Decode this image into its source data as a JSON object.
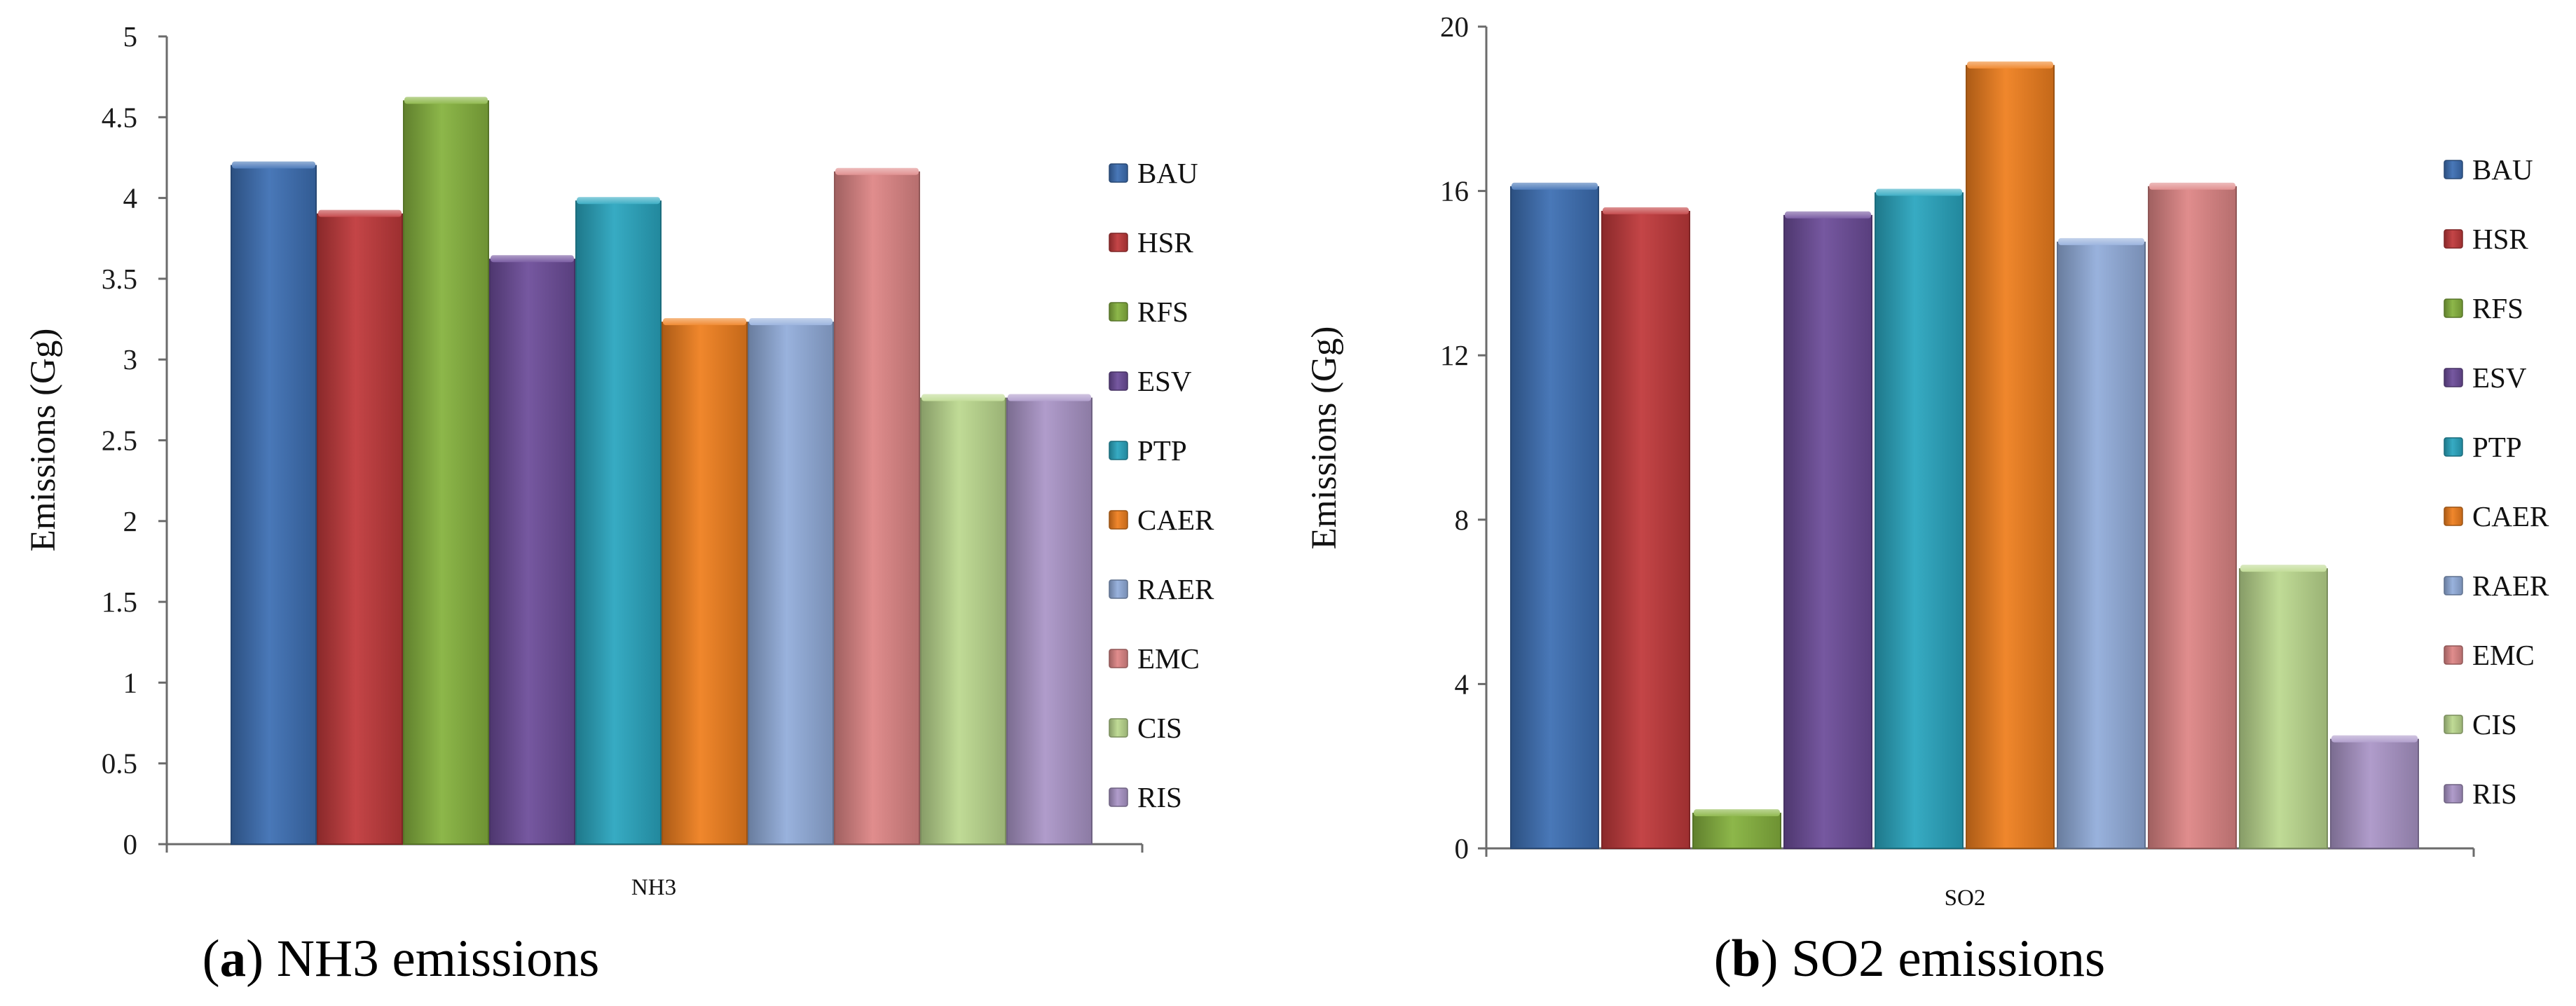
{
  "colors": {
    "BAU": "#3d6fb3",
    "HSR": "#c0393b",
    "RFS": "#86b23e",
    "ESV": "#6d4d9a",
    "PTP": "#2aa6bf",
    "CAER": "#ef7f1e",
    "RAER": "#92addb",
    "EMC": "#de8686",
    "CIS": "#bcd98f",
    "RIS": "#ab96c8"
  },
  "chart_data": [
    {
      "id": "a",
      "type": "bar",
      "title": "NH3 emissions",
      "caption_prefix": "a",
      "caption_text": " NH3 emissions",
      "xlabel": "NH3",
      "ylabel": "Emissions (Gg)",
      "ylim": [
        0,
        5
      ],
      "yticks": [
        "0",
        "0.5",
        "1",
        "1.5",
        "2",
        "2.5",
        "3",
        "3.5",
        "4",
        "4.5",
        "5"
      ],
      "legend_position": "right",
      "categories": [
        "NH3"
      ],
      "series": [
        {
          "name": "BAU",
          "values": [
            4.2
          ]
        },
        {
          "name": "HSR",
          "values": [
            3.9
          ]
        },
        {
          "name": "RFS",
          "values": [
            4.6
          ]
        },
        {
          "name": "ESV",
          "values": [
            3.62
          ]
        },
        {
          "name": "PTP",
          "values": [
            3.98
          ]
        },
        {
          "name": "CAER",
          "values": [
            3.23
          ]
        },
        {
          "name": "RAER",
          "values": [
            3.23
          ]
        },
        {
          "name": "EMC",
          "values": [
            4.16
          ]
        },
        {
          "name": "CIS",
          "values": [
            2.76
          ]
        },
        {
          "name": "RIS",
          "values": [
            2.76
          ]
        }
      ]
    },
    {
      "id": "b",
      "type": "bar",
      "title": "SO2 emissions",
      "caption_prefix": "b",
      "caption_text": " SO2 emissions",
      "xlabel": "SO2",
      "ylabel": "Emissions (Gg)",
      "ylim": [
        0,
        20
      ],
      "yticks": [
        "0",
        "4",
        "8",
        "12",
        "16",
        "20"
      ],
      "legend_position": "right",
      "categories": [
        "SO2"
      ],
      "series": [
        {
          "name": "BAU",
          "values": [
            16.1
          ]
        },
        {
          "name": "HSR",
          "values": [
            15.5
          ]
        },
        {
          "name": "RFS",
          "values": [
            0.85
          ]
        },
        {
          "name": "ESV",
          "values": [
            15.4
          ]
        },
        {
          "name": "PTP",
          "values": [
            15.95
          ]
        },
        {
          "name": "CAER",
          "values": [
            19.05
          ]
        },
        {
          "name": "RAER",
          "values": [
            14.75
          ]
        },
        {
          "name": "EMC",
          "values": [
            16.1
          ]
        },
        {
          "name": "CIS",
          "values": [
            6.8
          ]
        },
        {
          "name": "RIS",
          "values": [
            2.65
          ]
        }
      ]
    }
  ]
}
